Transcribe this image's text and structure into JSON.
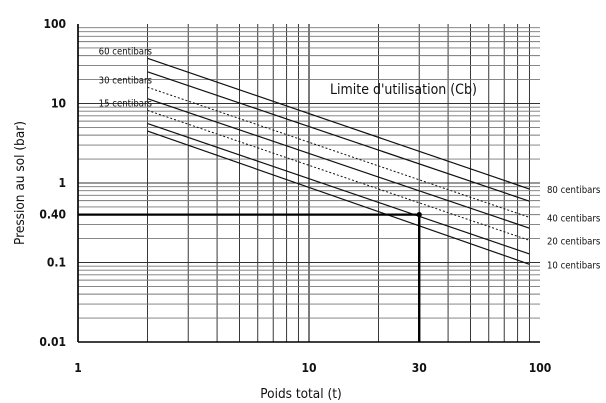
{
  "chart_data": {
    "type": "line",
    "title": "",
    "xlabel": "Poids total (t)",
    "ylabel": "Pression au sol (bar)",
    "xscale": "log",
    "yscale": "log",
    "xlim": [
      1,
      100
    ],
    "ylim": [
      0.01,
      100
    ],
    "grid": true,
    "x_ticks": [
      {
        "value": 1,
        "label": "1"
      },
      {
        "value": 10,
        "label": "10"
      },
      {
        "value": 30,
        "label": "30"
      },
      {
        "value": 100,
        "label": "100"
      }
    ],
    "y_ticks": [
      {
        "value": 0.01,
        "label": "0.01"
      },
      {
        "value": 0.1,
        "label": "0.1"
      },
      {
        "value": 0.4,
        "label": "0.40"
      },
      {
        "value": 1,
        "label": "1"
      },
      {
        "value": 10,
        "label": "10"
      },
      {
        "value": 100,
        "label": "100"
      }
    ],
    "annotation": "Limite d'utilisation (Cb)",
    "series": [
      {
        "name": "60 centibars",
        "style": "solid",
        "x": [
          2,
          90
        ],
        "y": [
          37,
          0.84
        ]
      },
      {
        "name": "30 centibars",
        "style": "dotted",
        "x": [
          2,
          90
        ],
        "y": [
          16,
          0.37
        ]
      },
      {
        "name": "15 centibars",
        "style": "dotted",
        "x": [
          2,
          90
        ],
        "y": [
          8.2,
          0.19
        ]
      },
      {
        "name": "80 centibars",
        "style": "solid",
        "x": [
          2,
          90
        ],
        "y": [
          25,
          0.59
        ]
      },
      {
        "name": "40 centibars",
        "style": "solid",
        "x": [
          2,
          90
        ],
        "y": [
          11.5,
          0.27
        ]
      },
      {
        "name": "20 centibars",
        "style": "solid",
        "x": [
          2,
          90
        ],
        "y": [
          5.6,
          0.128
        ]
      },
      {
        "name": "10 centibars",
        "style": "solid",
        "x": [
          2,
          90
        ],
        "y": [
          4.5,
          0.095
        ]
      }
    ],
    "left_labels": [
      {
        "text": "60 centibars",
        "y": 37
      },
      {
        "text": "30 centibars",
        "y": 16
      },
      {
        "text": "15 centibars",
        "y": 8.2
      }
    ],
    "right_labels": [
      {
        "text": "80 centibars",
        "y": 0.84
      },
      {
        "text": "40 centibars",
        "y": 0.37
      },
      {
        "text": "20 centibars",
        "y": 0.19
      },
      {
        "text": "10 centibars",
        "y": 0.095
      }
    ],
    "reference_point": {
      "x": 30,
      "y": 0.4
    }
  }
}
